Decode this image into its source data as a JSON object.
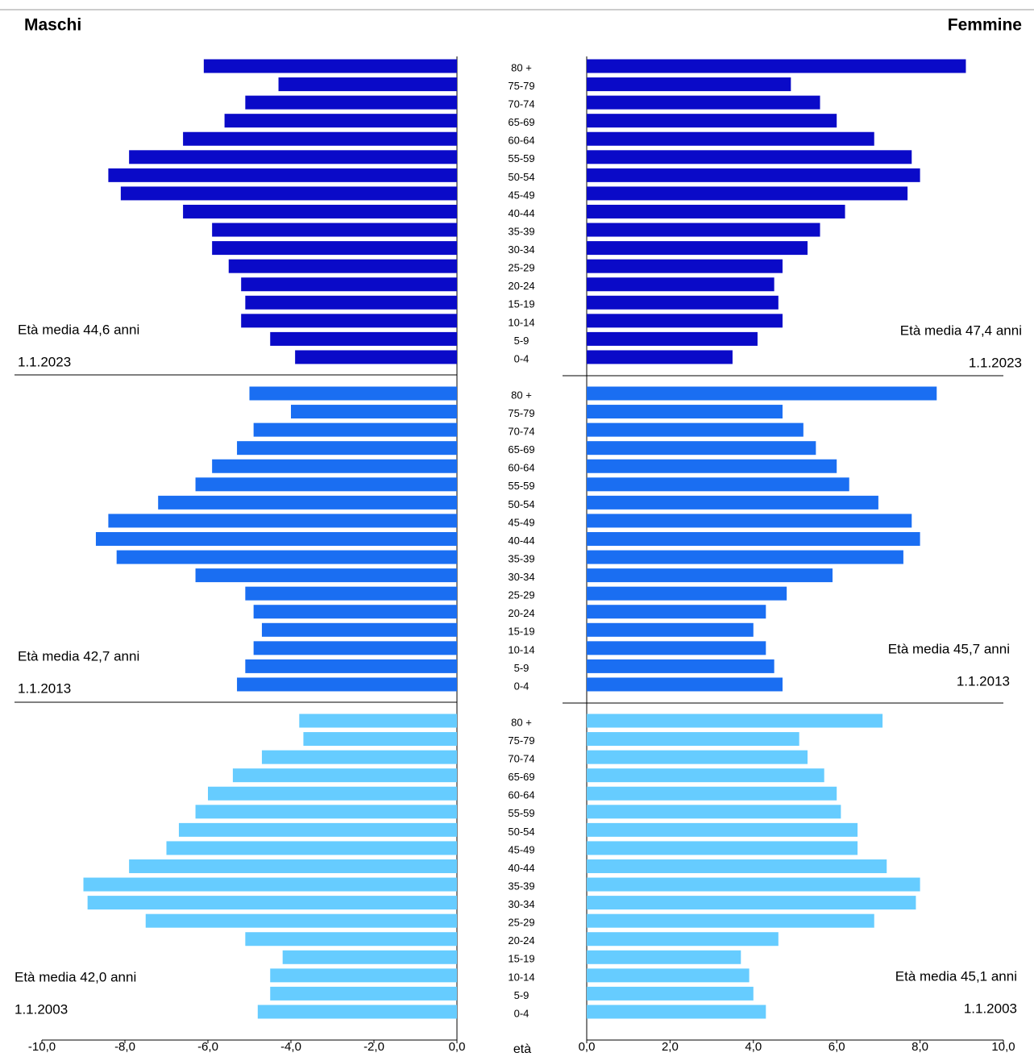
{
  "chart_data": {
    "type": "pyramid",
    "left_title": "Maschi",
    "right_title": "Femmine",
    "x_label": "età",
    "categories": [
      "80 +",
      "75-79",
      "70-74",
      "65-69",
      "60-64",
      "55-59",
      "50-54",
      "45-49",
      "40-44",
      "35-39",
      "30-34",
      "25-29",
      "20-24",
      "15-19",
      "10-14",
      "5-9",
      "0-4"
    ],
    "left_xlim": [
      -10,
      0
    ],
    "left_xticks": [
      {
        "value": -10,
        "label": "-10,0"
      },
      {
        "value": -8,
        "label": "-8,0"
      },
      {
        "value": -6,
        "label": "-6,0"
      },
      {
        "value": -4,
        "label": "-4,0"
      },
      {
        "value": -2,
        "label": "-2,0"
      },
      {
        "value": 0,
        "label": "0,0"
      }
    ],
    "right_xlim": [
      0,
      10
    ],
    "right_xticks": [
      {
        "value": 0,
        "label": "0,0"
      },
      {
        "value": 2,
        "label": "2,0"
      },
      {
        "value": 4,
        "label": "4,0"
      },
      {
        "value": 6,
        "label": "6,0"
      },
      {
        "value": 8,
        "label": "8,0"
      },
      {
        "value": 10,
        "label": "10,0"
      }
    ],
    "panels": [
      {
        "color": "#0a0ac8",
        "left_note": "Età media 44,6 anni",
        "left_date": "1.1.2023",
        "right_note": "Età media 47,4 anni",
        "right_date": "1.1.2023",
        "male": [
          -6.1,
          -4.3,
          -5.1,
          -5.6,
          -6.6,
          -7.9,
          -8.4,
          -8.1,
          -6.6,
          -5.9,
          -5.9,
          -5.5,
          -5.2,
          -5.1,
          -5.2,
          -4.5,
          -3.9
        ],
        "female": [
          9.1,
          4.9,
          5.6,
          6.0,
          6.9,
          7.8,
          8.0,
          7.7,
          6.2,
          5.6,
          5.3,
          4.7,
          4.5,
          4.6,
          4.7,
          4.1,
          3.5
        ]
      },
      {
        "color": "#1a6ef2",
        "left_note": "Età media 42,7 anni",
        "left_date": "1.1.2013",
        "right_note": "Età media 45,7 anni",
        "right_date": "1.1.2013",
        "male": [
          -5.0,
          -4.0,
          -4.9,
          -5.3,
          -5.9,
          -6.3,
          -7.2,
          -8.4,
          -8.7,
          -8.2,
          -6.3,
          -5.1,
          -4.9,
          -4.7,
          -4.9,
          -5.1,
          -5.3
        ],
        "female": [
          8.4,
          4.7,
          5.2,
          5.5,
          6.0,
          6.3,
          7.0,
          7.8,
          8.0,
          7.6,
          5.9,
          4.8,
          4.3,
          4.0,
          4.3,
          4.5,
          4.7
        ]
      },
      {
        "color": "#66ccff",
        "left_note": "Età media 42,0 anni",
        "left_date": "1.1.2003",
        "right_note": "Età media 45,1 anni",
        "right_date": "1.1.2003",
        "male": [
          -3.8,
          -3.7,
          -4.7,
          -5.4,
          -6.0,
          -6.3,
          -6.7,
          -7.0,
          -7.9,
          -9.0,
          -8.9,
          -7.5,
          -5.1,
          -4.2,
          -4.5,
          -4.5,
          -4.8
        ],
        "female": [
          7.1,
          5.1,
          5.3,
          5.7,
          6.0,
          6.1,
          6.5,
          6.5,
          7.2,
          8.0,
          7.9,
          6.9,
          4.6,
          3.7,
          3.9,
          4.0,
          4.3
        ]
      }
    ]
  }
}
